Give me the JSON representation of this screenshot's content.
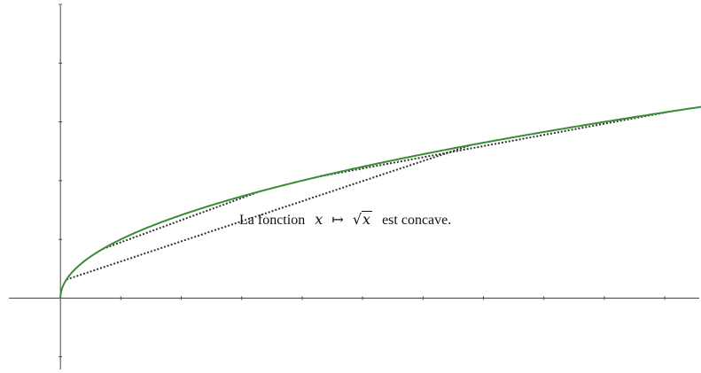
{
  "chart_data": {
    "type": "line",
    "title": "",
    "xlabel": "",
    "ylabel": "",
    "xlim": [
      -1,
      10.6
    ],
    "ylim": [
      -1.2,
      5
    ],
    "grid": false,
    "function": "sqrt(x)",
    "x_ticks": [
      1,
      2,
      3,
      4,
      5,
      6,
      7,
      8,
      9,
      10
    ],
    "y_ticks": [
      -1,
      1,
      2,
      3,
      4,
      5
    ],
    "series": [
      {
        "x": [
          0,
          0.01,
          0.05,
          0.1,
          0.2,
          0.4,
          0.7,
          1,
          1.5,
          2,
          2.5,
          3,
          3.5,
          4,
          4.5,
          5,
          5.5,
          6,
          6.5,
          7,
          7.5,
          8,
          8.5,
          9,
          9.5,
          10,
          10.5,
          10.6
        ],
        "y": [
          0,
          0.1,
          0.224,
          0.316,
          0.447,
          0.632,
          0.837,
          1,
          1.225,
          1.414,
          1.581,
          1.732,
          1.871,
          2,
          2.121,
          2.236,
          2.345,
          2.449,
          2.55,
          2.646,
          2.739,
          2.828,
          2.915,
          3,
          3.082,
          3.162,
          3.24,
          3.256
        ],
        "color": "#3a8a3a"
      }
    ],
    "chords": [
      {
        "x1": 0.1,
        "y1": 0.316,
        "x2": 6.8,
        "y2": 2.608
      },
      {
        "x1": 0.7,
        "y1": 0.837,
        "x2": 3.3,
        "y2": 1.817
      },
      {
        "x1": 4.3,
        "y1": 2.074,
        "x2": 10.1,
        "y2": 3.178
      }
    ],
    "chord_color": "#333333",
    "annotation": {
      "prefix": "La fonction",
      "var": "x",
      "arrow": "↦",
      "radical": "√",
      "radicand": "x",
      "suffix": "est concave."
    }
  }
}
